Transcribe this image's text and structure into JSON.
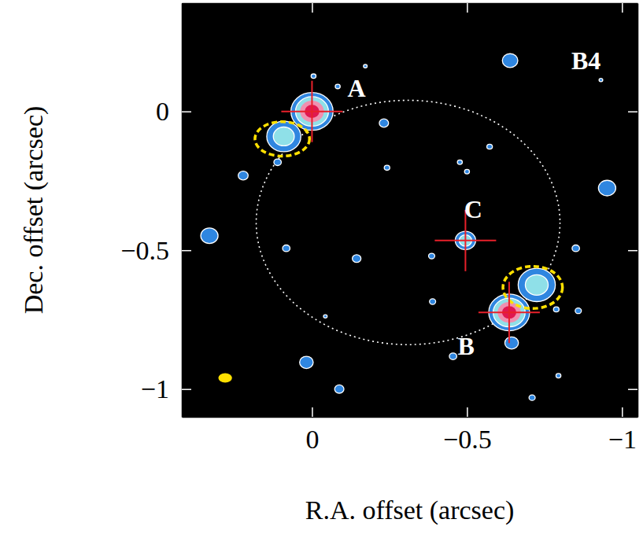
{
  "chart_data": {
    "type": "image",
    "xlabel": "R.A. offset (arcsec)",
    "ylabel": "Dec. offset (arcsec)",
    "xlim": [
      0.42,
      -1.05
    ],
    "ylim": [
      -1.1,
      0.39
    ],
    "xticks": [
      0,
      {
        "value": -0.5,
        "label": "−0.5"
      },
      {
        "value": -1,
        "label": "−1"
      }
    ],
    "yticks": [
      {
        "value": -1,
        "label": "−1"
      },
      {
        "value": -0.5,
        "label": "−0.5"
      },
      0
    ],
    "sources": {
      "x": [
        0,
        -0.636,
        -0.495
      ],
      "values": [
        0,
        -0.724,
        -0.465
      ],
      "marker": "cross",
      "color": "#e8202a"
    },
    "emission": {
      "x": [
        0,
        -0.636,
        -0.495,
        0.091,
        -0.725,
        -0.639,
        -0.232,
        -0.083,
        -0.172,
        -0.932,
        -0.477,
        -0.5,
        -0.242,
        -0.573,
        0.222,
        0.111,
        -0.952,
        0.331,
        0.083,
        -0.144,
        -0.386,
        -0.851,
        -0.389,
        -0.788,
        -0.859,
        -0.043,
        -0.644,
        -0.455,
        0.018,
        -0.088,
        -0.795,
        -0.71,
        -0.005
      ],
      "values": [
        0,
        -0.724,
        -0.465,
        -0.09,
        -0.625,
        0.183,
        -0.042,
        0.09,
        0.163,
        0.113,
        -0.183,
        -0.217,
        -0.203,
        -0.127,
        -0.231,
        -0.183,
        -0.276,
        -0.448,
        -0.493,
        -0.53,
        -0.521,
        -0.493,
        -0.685,
        -0.713,
        -0.718,
        -0.738,
        -0.834,
        -0.882,
        -0.904,
        -1.0,
        -0.952,
        -1.031,
        0.127
      ],
      "size": [
        0.068,
        0.066,
        0.033,
        0.055,
        0.06,
        0.025,
        0.015,
        0.008,
        0.006,
        0.006,
        0.008,
        0.008,
        0.009,
        0.009,
        0.016,
        0.012,
        0.028,
        0.028,
        0.012,
        0.014,
        0.01,
        0.012,
        0.01,
        0.009,
        0.01,
        0.006,
        0.022,
        0.012,
        0.022,
        0.015,
        0.008,
        0.01,
        0.008
      ],
      "contours": [
        4,
        4,
        2,
        2,
        2,
        1,
        1,
        1,
        1,
        1,
        1,
        1,
        1,
        1,
        1,
        1,
        1,
        1,
        1,
        1,
        1,
        1,
        1,
        1,
        1,
        1,
        1,
        1,
        1,
        1,
        1,
        1,
        1
      ]
    },
    "critical_curve": {
      "x": -0.31,
      "y": -0.4,
      "rx": 0.49,
      "ry": 0.44,
      "line_style": "dotted"
    },
    "arcs": {
      "x": [
        0.096,
        -0.712
      ],
      "values": [
        -0.099,
        -0.634
      ],
      "rx": [
        0.088,
        0.096
      ],
      "ry": [
        0.062,
        0.076
      ],
      "color": "#ffe000",
      "line_style": "dashed"
    },
    "beam": {
      "x": 0.28,
      "y": -0.96,
      "major": 0.022,
      "minor": 0.017,
      "color": "#ffe000"
    },
    "annotations": [
      {
        "text": "A",
        "x": -0.144,
        "y": 0.085
      },
      {
        "text": "B",
        "x": -0.497,
        "y": -0.845
      },
      {
        "text": "C",
        "x": -0.52,
        "y": -0.352
      },
      {
        "text": "B4",
        "x": -0.884,
        "y": 0.183
      }
    ]
  }
}
